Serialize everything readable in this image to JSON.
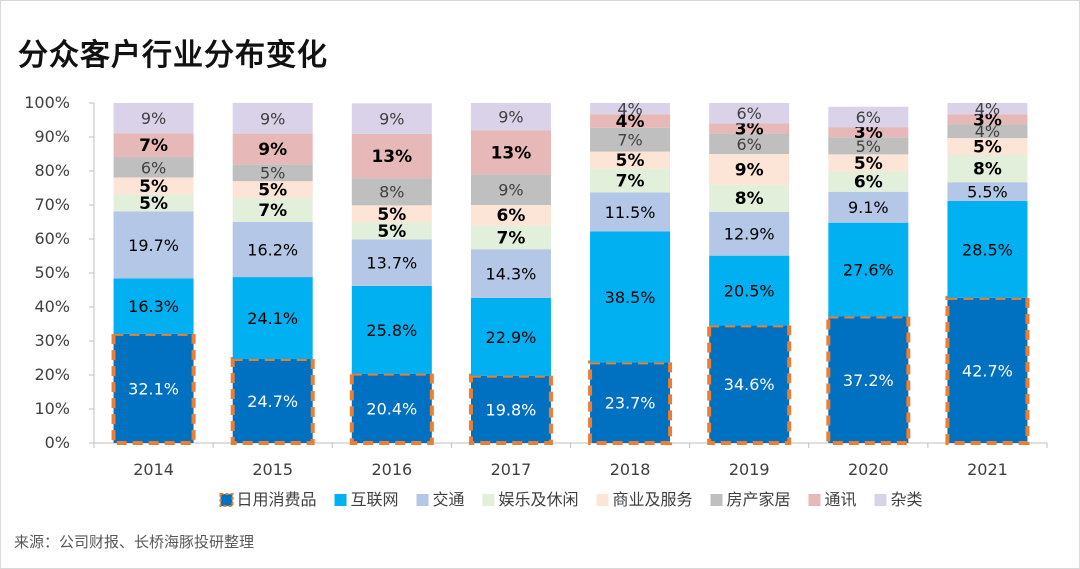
{
  "page": {
    "title": "分众客户行业分布变化",
    "source": "来源：公司财报、长桥海豚投研整理"
  },
  "chart_data": {
    "type": "bar",
    "stacked": true,
    "percent": true,
    "title": "分众客户行业分布变化",
    "categories": [
      "2014",
      "2015",
      "2016",
      "2017",
      "2018",
      "2019",
      "2020",
      "2021"
    ],
    "y_ticks": [
      "0%",
      "10%",
      "20%",
      "30%",
      "40%",
      "50%",
      "60%",
      "70%",
      "80%",
      "90%",
      "100%"
    ],
    "ylim": [
      0,
      100
    ],
    "legend_position": "bottom",
    "series": [
      {
        "name": "日用消费品",
        "color": "#0070C0",
        "highlight": true,
        "values": [
          32.1,
          24.7,
          20.4,
          19.8,
          23.7,
          34.6,
          37.2,
          42.7
        ],
        "labels": [
          "32.1%",
          "24.7%",
          "20.4%",
          "19.8%",
          "23.7%",
          "34.6%",
          "37.2%",
          "42.7%"
        ]
      },
      {
        "name": "互联网",
        "color": "#00B0F0",
        "values": [
          16.3,
          24.1,
          25.8,
          22.9,
          38.5,
          20.5,
          27.6,
          28.5
        ],
        "labels": [
          "16.3%",
          "24.1%",
          "25.8%",
          "22.9%",
          "38.5%",
          "20.5%",
          "27.6%",
          "28.5%"
        ]
      },
      {
        "name": "交通",
        "color": "#B4C7E7",
        "values": [
          19.7,
          16.2,
          13.7,
          14.3,
          11.5,
          12.9,
          9.1,
          5.5
        ],
        "labels": [
          "19.7%",
          "16.2%",
          "13.7%",
          "14.3%",
          "11.5%",
          "12.9%",
          "9.1%",
          "5.5%"
        ]
      },
      {
        "name": "娱乐及休闲",
        "color": "#E2EFDA",
        "values": [
          5,
          7,
          5,
          7,
          7,
          8,
          6,
          8
        ],
        "labels": [
          "5%",
          "7%",
          "5%",
          "7%",
          "7%",
          "8%",
          "6%",
          "8%"
        ]
      },
      {
        "name": "商业及服务",
        "color": "#FCE4D6",
        "values": [
          5,
          5,
          5,
          6,
          5,
          9,
          5,
          5
        ],
        "labels": [
          "5%",
          "5%",
          "5%",
          "6%",
          "5%",
          "9%",
          "5%",
          "5%"
        ]
      },
      {
        "name": "房产家居",
        "color": "#BFBFBF",
        "values": [
          6,
          5,
          8,
          9,
          7,
          6,
          5,
          4
        ],
        "labels": [
          "6%",
          "5%",
          "8%",
          "9%",
          "7%",
          "6%",
          "5%",
          "4%"
        ]
      },
      {
        "name": "通讯",
        "color": "#E6B8B7",
        "values": [
          7,
          9,
          13,
          13,
          4,
          3,
          3,
          3
        ],
        "labels": [
          "7%",
          "9%",
          "13%",
          "13%",
          "4%",
          "3%",
          "3%",
          "3%"
        ]
      },
      {
        "name": "杂类",
        "color": "#D9D2E9",
        "values": [
          9,
          9,
          9,
          9,
          4,
          6,
          6,
          4
        ],
        "labels": [
          "9%",
          "9%",
          "9%",
          "9%",
          "4%",
          "6%",
          "6%",
          "4%"
        ]
      }
    ],
    "colors": {
      "highlight_border": "#ED7D31",
      "axis": "#BFBFBF",
      "tick_text": "#404040",
      "label_dark": "#000000",
      "label_light": "#ffffff",
      "label_muted": "#404040"
    }
  }
}
